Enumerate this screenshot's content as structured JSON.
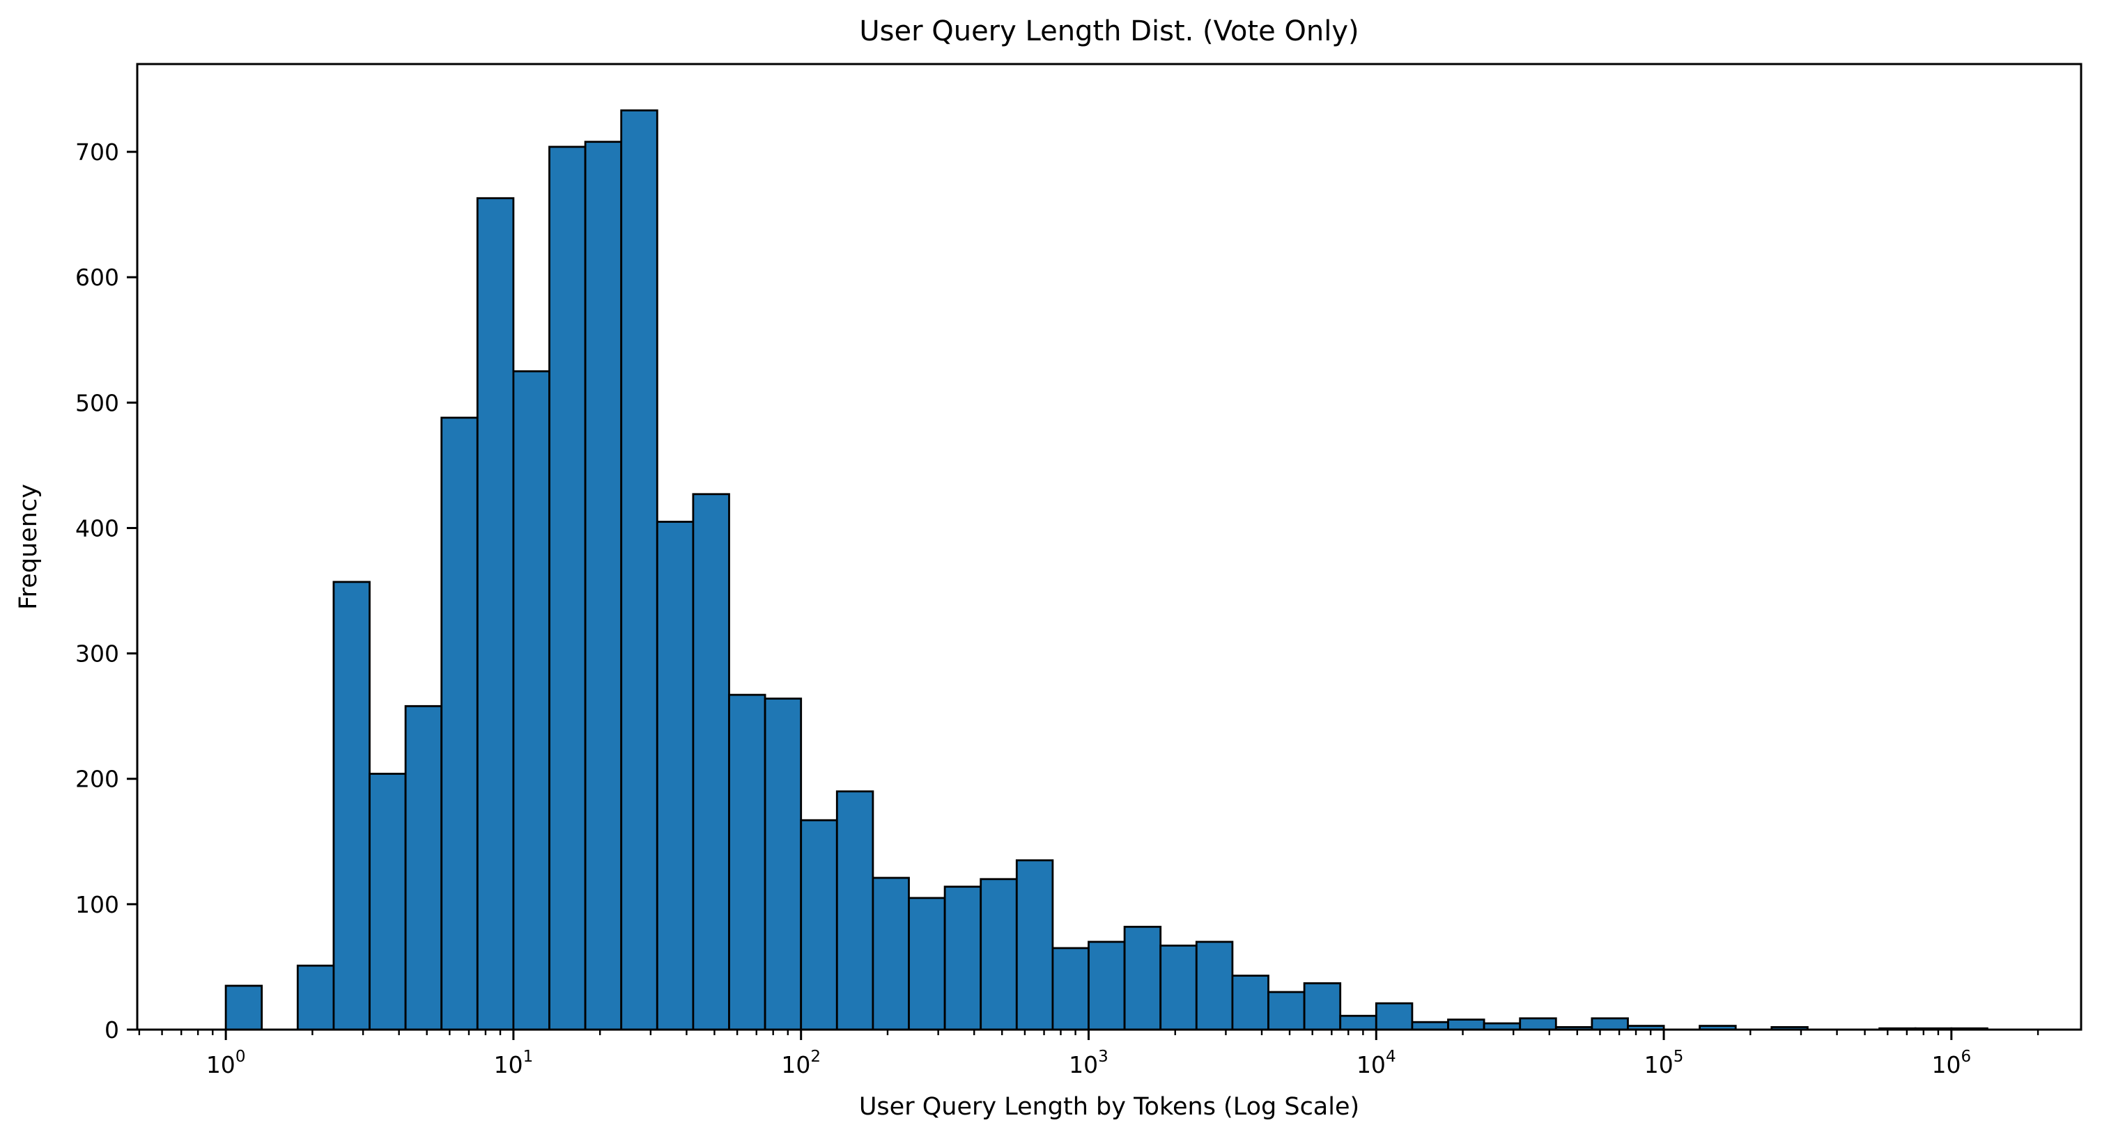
{
  "chart_data": {
    "type": "bar",
    "subtype": "histogram",
    "title": "User Query Length Dist. (Vote Only)",
    "xlabel": "User Query Length by Tokens (Log Scale)",
    "ylabel": "Frequency",
    "x_scale": "log",
    "grid": false,
    "legend_position": "none",
    "ylim": [
      0,
      770
    ],
    "xlim_log10": [
      -0.308,
      6.451
    ],
    "y_ticks": [
      0,
      100,
      200,
      300,
      400,
      500,
      600,
      700
    ],
    "x_major_tick_exponents": [
      0,
      1,
      2,
      3,
      4,
      5,
      6
    ],
    "x_major_tick_base": "10",
    "log10_bin_width": 0.125,
    "bin_edges_log10_start": 0,
    "bin_edges": [
      1,
      1.33,
      1.78,
      2.37,
      3.16,
      4.22,
      5.62,
      7.5,
      10,
      13.3,
      17.8,
      23.7,
      31.6,
      42.2,
      56.2,
      75,
      100,
      133,
      178,
      237,
      316,
      422,
      562,
      750,
      1000,
      1330,
      1780,
      2370,
      3160,
      4220,
      5620,
      7500,
      10000,
      13300,
      17800,
      23700,
      31600,
      42200,
      56200,
      75000,
      100000,
      133000,
      178000,
      237000,
      316000,
      422000,
      562000,
      750000,
      1000000,
      1330000
    ],
    "counts": [
      35,
      0,
      51,
      357,
      204,
      258,
      488,
      663,
      525,
      704,
      708,
      733,
      405,
      427,
      267,
      264,
      167,
      190,
      121,
      105,
      114,
      120,
      135,
      65,
      70,
      82,
      67,
      70,
      43,
      30,
      37,
      11,
      21,
      6,
      8,
      5,
      9,
      2,
      9,
      3,
      0,
      3,
      0,
      2,
      0,
      0,
      1,
      1,
      1
    ],
    "colors": {
      "bar_fill": "#1f77b4",
      "bar_edge": "#000000",
      "axis": "#000000",
      "background": "#ffffff",
      "text": "#000000"
    }
  }
}
